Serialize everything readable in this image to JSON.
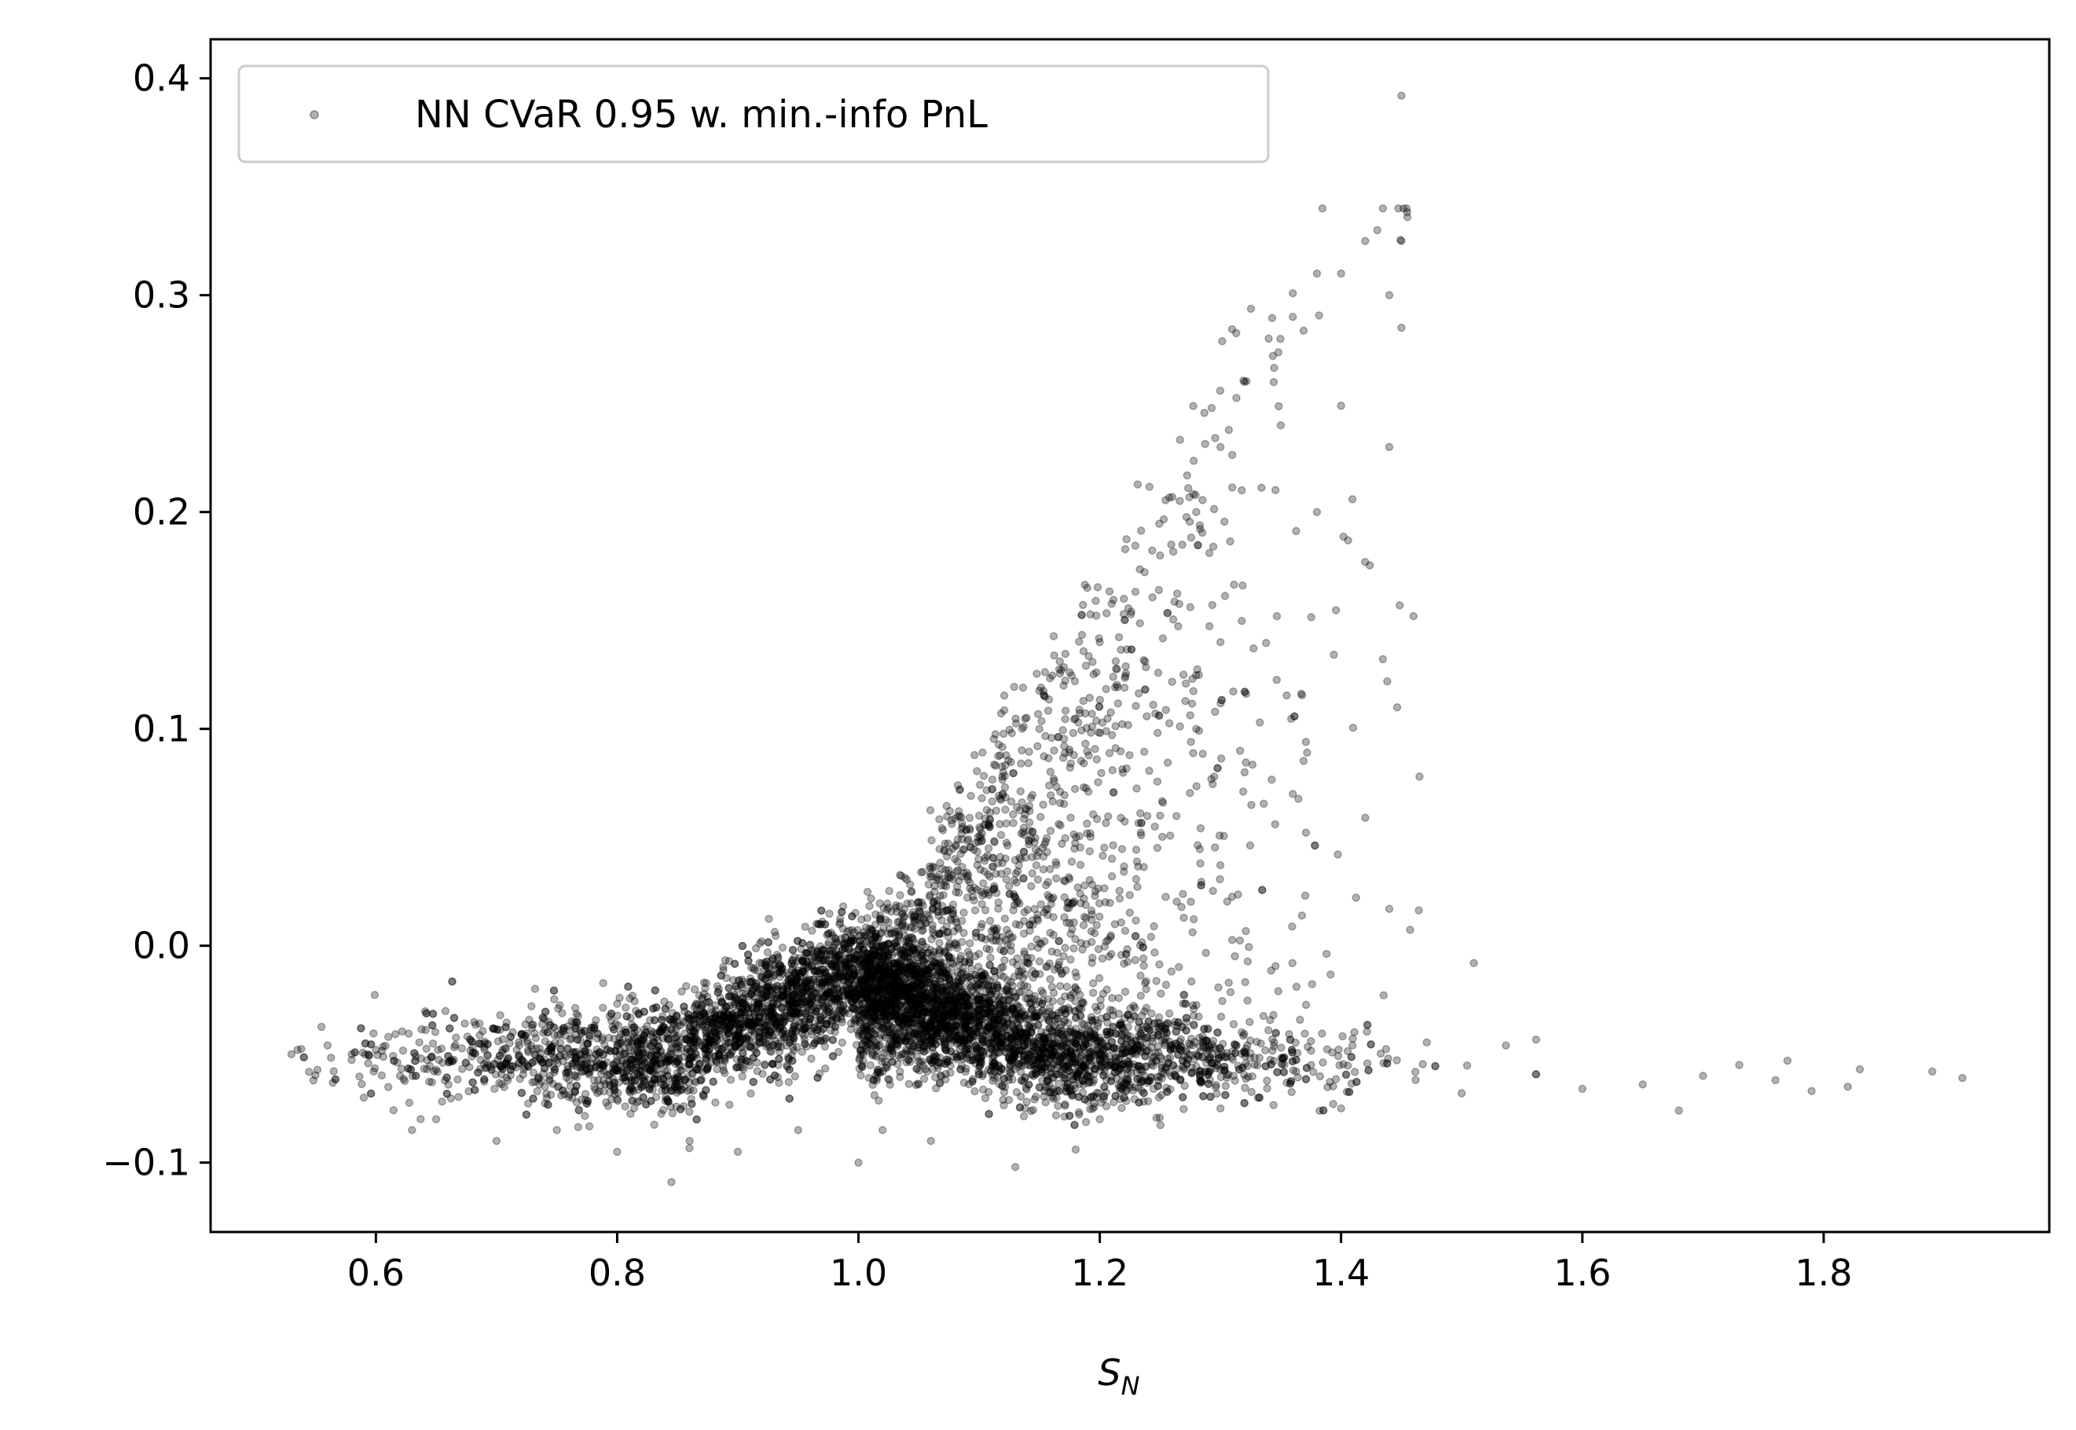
{
  "chart_data": {
    "type": "scatter",
    "xlabel": "S",
    "xlabel_subscript": "N",
    "ylabel": "",
    "title": "",
    "xlim": [
      0.463,
      1.987
    ],
    "ylim": [
      -0.132,
      0.418
    ],
    "x_ticks": [
      0.6,
      0.8,
      1.0,
      1.2,
      1.4,
      1.6,
      1.8
    ],
    "x_tick_labels": [
      "0.6",
      "0.8",
      "1.0",
      "1.2",
      "1.4",
      "1.6",
      "1.8"
    ],
    "y_ticks": [
      -0.1,
      0.0,
      0.1,
      0.2,
      0.3,
      0.4
    ],
    "y_tick_labels": [
      "−0.1",
      "0.0",
      "0.1",
      "0.2",
      "0.3",
      "0.4"
    ],
    "grid": false,
    "legend": {
      "position": "top-left",
      "entries": [
        "NN CVaR 0.95 w. min.-info PnL"
      ]
    },
    "marker_color": "#000000",
    "marker_alpha": 0.3,
    "series": [
      {
        "name": "NN CVaR 0.95 w. min.-info PnL",
        "description_of_density": "dense band around y≈-0.05 for x in [0.53, 1.92]; cone rising from x≈1.0 upward to y≈0.39 at x≈1.45",
        "points": [
          [
            0.53,
            -0.05
          ],
          [
            0.535,
            -0.048
          ],
          [
            0.56,
            -0.046
          ],
          [
            0.58,
            -0.05
          ],
          [
            0.59,
            -0.07
          ],
          [
            0.6,
            -0.048
          ],
          [
            0.62,
            -0.06
          ],
          [
            0.63,
            -0.085
          ],
          [
            0.65,
            -0.08
          ],
          [
            0.7,
            -0.09
          ],
          [
            0.75,
            -0.085
          ],
          [
            0.8,
            -0.095
          ],
          [
            0.845,
            -0.109
          ],
          [
            0.86,
            -0.09
          ],
          [
            0.9,
            -0.095
          ],
          [
            0.92,
            -0.008
          ],
          [
            0.95,
            -0.085
          ],
          [
            1.0,
            -0.1
          ],
          [
            1.02,
            -0.085
          ],
          [
            1.06,
            -0.09
          ],
          [
            1.13,
            -0.102
          ],
          [
            1.18,
            -0.094
          ],
          [
            1.2,
            -0.08
          ],
          [
            1.3,
            -0.075
          ],
          [
            1.4,
            -0.075
          ],
          [
            1.5,
            -0.068
          ],
          [
            1.6,
            -0.066
          ],
          [
            1.65,
            -0.064
          ],
          [
            1.68,
            -0.076
          ],
          [
            1.7,
            -0.06
          ],
          [
            1.73,
            -0.055
          ],
          [
            1.76,
            -0.062
          ],
          [
            1.77,
            -0.053
          ],
          [
            1.79,
            -0.067
          ],
          [
            1.82,
            -0.065
          ],
          [
            1.83,
            -0.057
          ],
          [
            1.89,
            -0.058
          ],
          [
            1.915,
            -0.061
          ],
          [
            1.0,
            -0.01
          ],
          [
            1.02,
            0.0
          ],
          [
            1.05,
            0.02
          ],
          [
            1.08,
            0.04
          ],
          [
            1.1,
            0.06
          ],
          [
            1.12,
            0.08
          ],
          [
            1.15,
            0.1
          ],
          [
            1.17,
            0.12
          ],
          [
            1.2,
            0.14
          ],
          [
            1.22,
            0.16
          ],
          [
            1.25,
            0.18
          ],
          [
            1.28,
            0.2
          ],
          [
            1.3,
            0.23
          ],
          [
            1.32,
            0.26
          ],
          [
            1.34,
            0.28
          ],
          [
            1.36,
            0.29
          ],
          [
            1.38,
            0.31
          ],
          [
            1.4,
            0.31
          ],
          [
            1.42,
            0.325
          ],
          [
            1.43,
            0.33
          ],
          [
            1.44,
            0.3
          ],
          [
            1.45,
            0.285
          ],
          [
            1.45,
            0.325
          ],
          [
            1.455,
            0.336
          ],
          [
            1.45,
            0.392
          ],
          [
            1.44,
            0.23
          ],
          [
            1.42,
            0.177
          ],
          [
            1.46,
            0.152
          ],
          [
            1.465,
            0.078
          ],
          [
            1.42,
            0.059
          ],
          [
            1.44,
            0.017
          ],
          [
            1.51,
            -0.008
          ],
          [
            1.4,
            0.249
          ],
          [
            1.38,
            0.2
          ],
          [
            1.35,
            0.24
          ],
          [
            1.3,
            0.14
          ],
          [
            1.28,
            0.1
          ],
          [
            1.25,
            0.06
          ],
          [
            1.32,
            0.08
          ],
          [
            1.36,
            0.07
          ]
        ]
      }
    ]
  }
}
